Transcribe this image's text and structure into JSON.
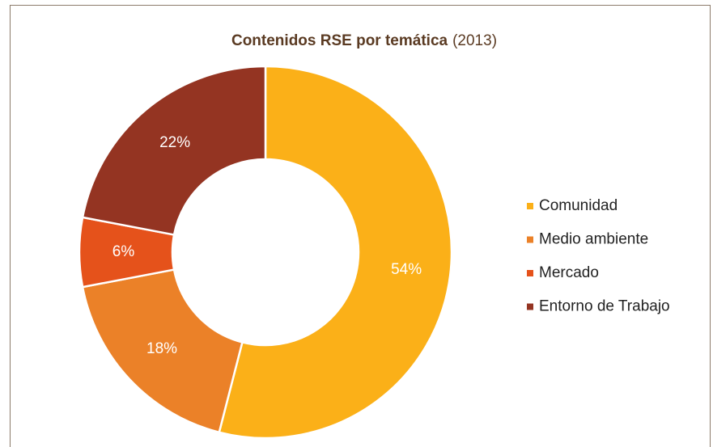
{
  "chart_data": {
    "type": "donut",
    "title": "Contenidos RSE por temática",
    "subtitle": "(2013)",
    "categories": [
      "Comunidad",
      "Medio ambiente",
      "Mercado",
      "Entorno de Trabajo"
    ],
    "values": [
      54,
      18,
      6,
      22
    ],
    "value_labels": [
      "54%",
      "18%",
      "6%",
      "22%"
    ],
    "colors": [
      "#fbb018",
      "#eb8128",
      "#e5521b",
      "#943422"
    ],
    "legend": "right"
  }
}
